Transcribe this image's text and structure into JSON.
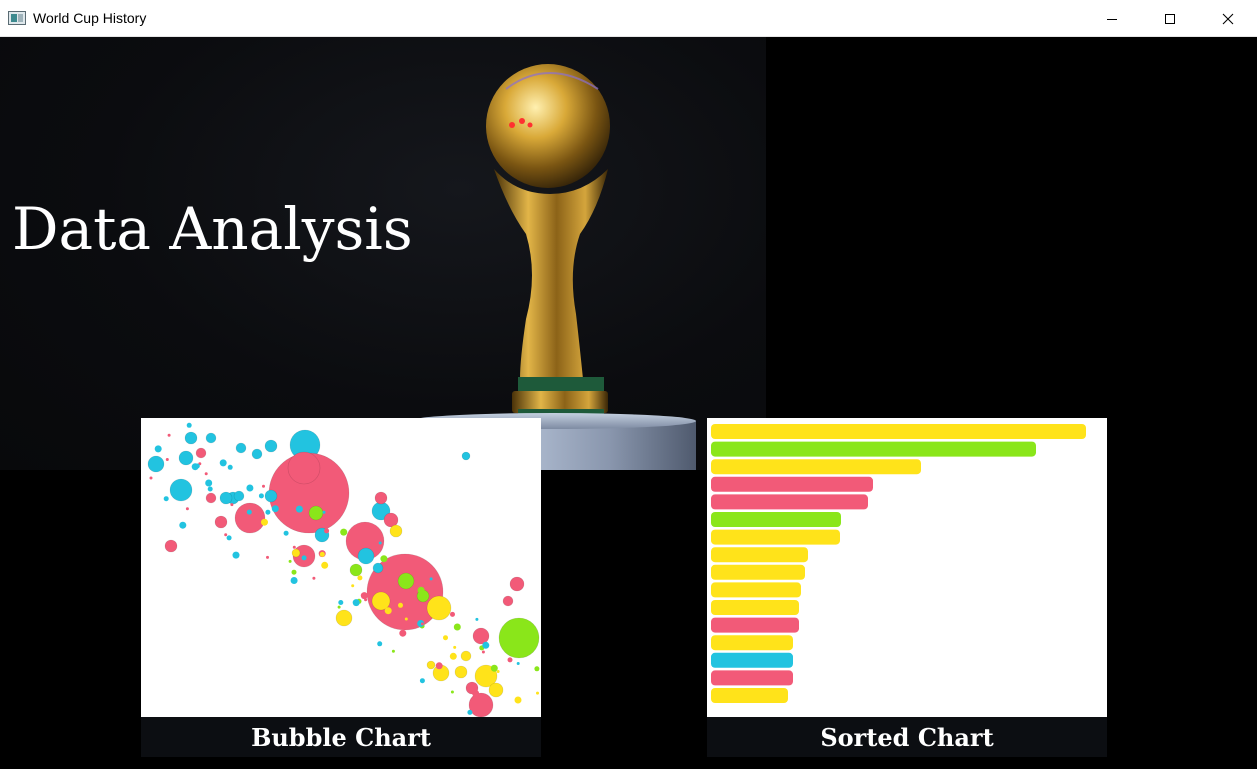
{
  "window": {
    "title": "World Cup History",
    "controls": {
      "minimize": "minimize-icon",
      "maximize": "maximize-icon",
      "close": "close-icon"
    }
  },
  "hero": {
    "title": "Data Analysis",
    "image": "world-cup-trophy"
  },
  "colors": {
    "pink": "#f25a78",
    "cyan": "#22c3e0",
    "green": "#8ae61a",
    "yellow": "#ffe31a"
  },
  "cards": [
    {
      "label": "Bubble Chart",
      "type": "bubble-chart-thumbnail"
    },
    {
      "label": "Sorted Chart",
      "type": "sorted-bar-chart-thumbnail"
    }
  ]
}
